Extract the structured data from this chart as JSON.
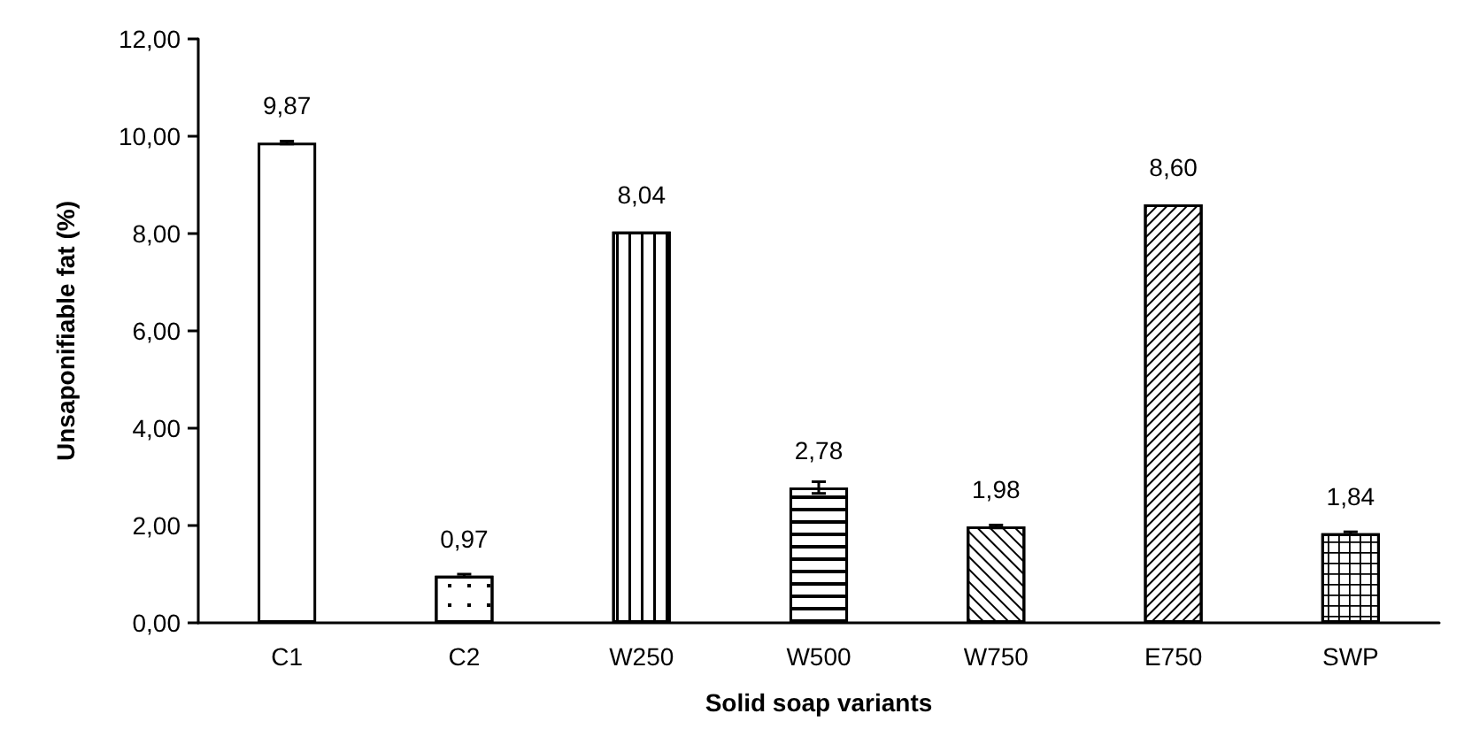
{
  "chart_data": {
    "type": "bar",
    "xlabel": "Solid soap variants",
    "ylabel": "Unsaponifiable fat (%)",
    "categories": [
      "C1",
      "C2",
      "W250",
      "W500",
      "W750",
      "E750",
      "SWP"
    ],
    "values": [
      9.87,
      0.97,
      8.04,
      2.78,
      1.98,
      8.6,
      1.84
    ],
    "value_labels": [
      "9,87",
      "0,97",
      "8,04",
      "2,78",
      "1,98",
      "8,60",
      "1,84"
    ],
    "errors": [
      0.03,
      0.03,
      null,
      0.12,
      0.03,
      null,
      0.03
    ],
    "color": "#ffffff",
    "ylim": [
      0,
      12
    ],
    "yticks": [
      {
        "value": 0,
        "label": "0,00"
      },
      {
        "value": 2,
        "label": "2,00"
      },
      {
        "value": 4,
        "label": "4,00"
      },
      {
        "value": 6,
        "label": "6,00"
      },
      {
        "value": 8,
        "label": "8,00"
      },
      {
        "value": 10,
        "label": "10,00"
      },
      {
        "value": 12,
        "label": "12,00"
      }
    ],
    "grid": false
  }
}
